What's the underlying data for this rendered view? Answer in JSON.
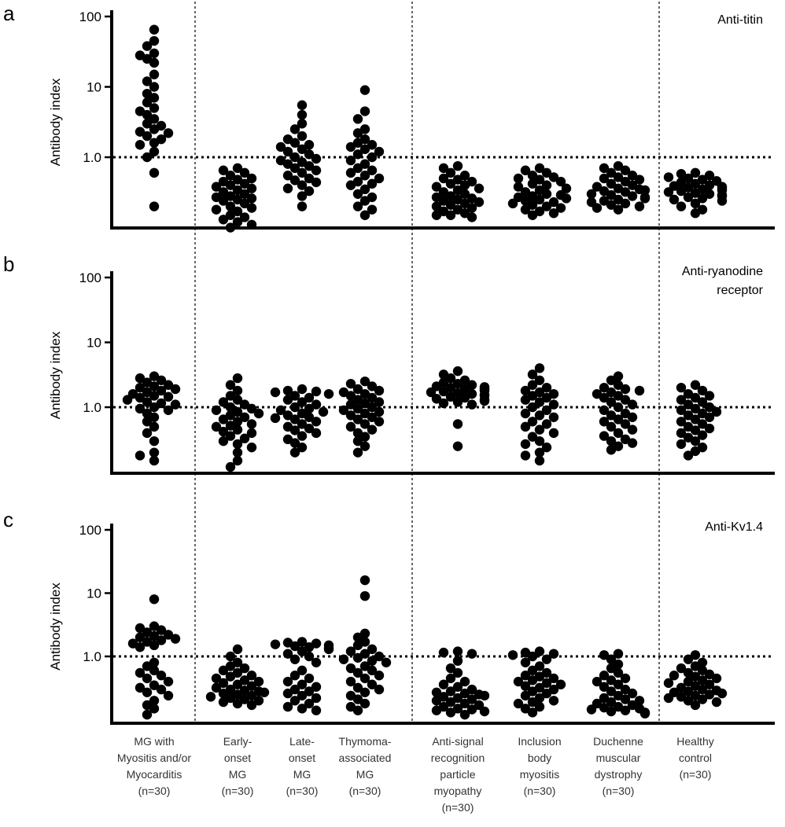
{
  "figure": {
    "group_labels": [
      [
        "MG with",
        "Myositis and/or",
        "Myocarditis",
        "(n=30)"
      ],
      [
        "Early-",
        "onset",
        "MG",
        "(n=30)"
      ],
      [
        "Late-",
        "onset",
        "MG",
        "(n=30)"
      ],
      [
        "Thymoma-",
        "associated",
        "MG",
        "(n=30)"
      ],
      [
        "Anti-signal",
        "recognition",
        "particle",
        "myopathy",
        "(n=30)"
      ],
      [
        "Inclusion",
        "body",
        "myositis",
        "(n=30)"
      ],
      [
        "Duchenne",
        "muscular",
        "dystrophy",
        "(n=30)"
      ],
      [
        "Healthy",
        "control",
        "(n=30)"
      ]
    ],
    "marker_color": "#000000"
  },
  "chart_data": [
    {
      "type": "scatter",
      "panel": "a",
      "title": [
        "Anti-titin"
      ],
      "ylabel": "Antibody index",
      "yscale": "log",
      "ylim": [
        0.1,
        100
      ],
      "yticks": [
        100,
        10,
        1.0
      ],
      "ytick_labels": [
        "100",
        "10",
        "1.0"
      ],
      "cutoff": 1.0,
      "categories": [
        "MG with Myositis and/or Myocarditis",
        "Early-onset MG",
        "Late-onset MG",
        "Thymoma-associated MG",
        "Anti-signal recognition particle myopathy",
        "Inclusion body myositis",
        "Duchenne muscular dystrophy",
        "Healthy control"
      ],
      "series": [
        {
          "name": "MG with Myositis and/or Myocarditis",
          "values": [
            65,
            45,
            38,
            30,
            28,
            25,
            22,
            15,
            12,
            10,
            8,
            7,
            6,
            5,
            4.5,
            4,
            3.5,
            3,
            2.8,
            2.5,
            2.3,
            2.2,
            2,
            1.8,
            1.6,
            1.5,
            1.2,
            1.0,
            0.6,
            0.2
          ]
        },
        {
          "name": "Early-onset MG",
          "values": [
            0.7,
            0.65,
            0.6,
            0.55,
            0.5,
            0.48,
            0.45,
            0.42,
            0.4,
            0.38,
            0.36,
            0.34,
            0.32,
            0.3,
            0.28,
            0.27,
            0.26,
            0.25,
            0.24,
            0.22,
            0.2,
            0.19,
            0.18,
            0.17,
            0.15,
            0.14,
            0.13,
            0.12,
            0.11,
            0.1
          ]
        },
        {
          "name": "Late-onset MG",
          "values": [
            5.5,
            4,
            3,
            2.5,
            2,
            1.8,
            1.6,
            1.5,
            1.4,
            1.3,
            1.2,
            1.1,
            1.0,
            0.95,
            0.9,
            0.85,
            0.8,
            0.75,
            0.7,
            0.65,
            0.6,
            0.55,
            0.5,
            0.47,
            0.44,
            0.4,
            0.36,
            0.33,
            0.28,
            0.2
          ]
        },
        {
          "name": "Thymoma-associated MG",
          "values": [
            9,
            4.5,
            3.5,
            2.5,
            2.2,
            1.8,
            1.6,
            1.5,
            1.4,
            1.3,
            1.2,
            1.1,
            1.0,
            0.9,
            0.8,
            0.7,
            0.65,
            0.6,
            0.55,
            0.5,
            0.45,
            0.42,
            0.4,
            0.35,
            0.3,
            0.27,
            0.24,
            0.2,
            0.18,
            0.15
          ]
        },
        {
          "name": "Anti-signal recognition particle myopathy",
          "values": [
            0.75,
            0.7,
            0.6,
            0.55,
            0.5,
            0.48,
            0.45,
            0.42,
            0.4,
            0.38,
            0.36,
            0.34,
            0.32,
            0.3,
            0.28,
            0.27,
            0.26,
            0.25,
            0.24,
            0.23,
            0.22,
            0.21,
            0.2,
            0.19,
            0.18,
            0.17,
            0.16,
            0.15,
            0.15,
            0.14
          ]
        },
        {
          "name": "Inclusion body myositis",
          "values": [
            0.7,
            0.65,
            0.6,
            0.55,
            0.52,
            0.5,
            0.48,
            0.45,
            0.42,
            0.4,
            0.38,
            0.36,
            0.34,
            0.32,
            0.3,
            0.29,
            0.28,
            0.27,
            0.26,
            0.25,
            0.24,
            0.23,
            0.22,
            0.21,
            0.2,
            0.19,
            0.18,
            0.17,
            0.16,
            0.15
          ]
        },
        {
          "name": "Duchenne muscular dystrophy",
          "values": [
            0.75,
            0.7,
            0.65,
            0.6,
            0.55,
            0.52,
            0.5,
            0.48,
            0.45,
            0.42,
            0.4,
            0.38,
            0.36,
            0.35,
            0.34,
            0.33,
            0.32,
            0.3,
            0.29,
            0.28,
            0.27,
            0.26,
            0.25,
            0.24,
            0.23,
            0.22,
            0.21,
            0.2,
            0.19,
            0.18
          ]
        },
        {
          "name": "Healthy control",
          "values": [
            0.6,
            0.58,
            0.55,
            0.52,
            0.5,
            0.48,
            0.46,
            0.44,
            0.42,
            0.4,
            0.39,
            0.38,
            0.37,
            0.36,
            0.35,
            0.34,
            0.33,
            0.32,
            0.31,
            0.3,
            0.29,
            0.28,
            0.27,
            0.26,
            0.25,
            0.24,
            0.22,
            0.2,
            0.18,
            0.16
          ]
        }
      ]
    },
    {
      "type": "scatter",
      "panel": "b",
      "title": [
        "Anti-ryanodine",
        "receptor"
      ],
      "ylabel": "Antibody index",
      "yscale": "log",
      "ylim": [
        0.1,
        100
      ],
      "yticks": [
        100,
        10,
        1.0
      ],
      "ytick_labels": [
        "100",
        "10",
        "1.0"
      ],
      "cutoff": 1.0,
      "categories": [
        "MG with Myositis and/or Myocarditis",
        "Early-onset MG",
        "Late-onset MG",
        "Thymoma-associated MG",
        "Anti-signal recognition particle myopathy",
        "Inclusion body myositis",
        "Duchenne muscular dystrophy",
        "Healthy control"
      ],
      "series": [
        {
          "name": "MG with Myositis and/or Myocarditis",
          "values": [
            3,
            2.8,
            2.6,
            2.4,
            2.2,
            2.1,
            2,
            1.9,
            1.8,
            1.7,
            1.6,
            1.5,
            1.45,
            1.4,
            1.3,
            1.2,
            1.15,
            1.1,
            1.0,
            0.95,
            0.9,
            0.8,
            0.7,
            0.6,
            0.5,
            0.4,
            0.3,
            0.2,
            0.18,
            0.15
          ]
        },
        {
          "name": "Early-onset MG",
          "values": [
            2.8,
            2.2,
            1.8,
            1.5,
            1.3,
            1.2,
            1.1,
            1.0,
            0.95,
            0.9,
            0.85,
            0.8,
            0.75,
            0.7,
            0.65,
            0.6,
            0.55,
            0.52,
            0.5,
            0.45,
            0.42,
            0.4,
            0.36,
            0.33,
            0.3,
            0.27,
            0.24,
            0.2,
            0.15,
            0.12
          ]
        },
        {
          "name": "Late-onset MG",
          "values": [
            1.9,
            1.8,
            1.75,
            1.7,
            1.6,
            1.5,
            1.4,
            1.3,
            1.2,
            1.1,
            1.0,
            0.95,
            0.9,
            0.85,
            0.8,
            0.75,
            0.7,
            0.68,
            0.65,
            0.6,
            0.55,
            0.5,
            0.47,
            0.44,
            0.4,
            0.36,
            0.32,
            0.28,
            0.24,
            0.2
          ]
        },
        {
          "name": "Thymoma-associated MG",
          "values": [
            2.5,
            2.3,
            2.1,
            1.9,
            1.8,
            1.7,
            1.6,
            1.5,
            1.4,
            1.3,
            1.2,
            1.15,
            1.1,
            1.0,
            0.95,
            0.9,
            0.85,
            0.8,
            0.75,
            0.7,
            0.65,
            0.6,
            0.55,
            0.5,
            0.45,
            0.4,
            0.35,
            0.3,
            0.25,
            0.2
          ]
        },
        {
          "name": "Anti-signal recognition particle myopathy",
          "values": [
            3.6,
            3.2,
            2.8,
            2.6,
            2.4,
            2.3,
            2.2,
            2.1,
            2.05,
            2.0,
            1.95,
            1.9,
            1.85,
            1.8,
            1.75,
            1.7,
            1.65,
            1.6,
            1.55,
            1.5,
            1.45,
            1.4,
            1.35,
            1.3,
            1.25,
            1.2,
            1.15,
            1.1,
            0.55,
            0.25
          ]
        },
        {
          "name": "Inclusion body myositis",
          "values": [
            4,
            3.2,
            2.6,
            2.2,
            2,
            1.8,
            1.7,
            1.6,
            1.5,
            1.4,
            1.3,
            1.2,
            1.1,
            1.0,
            0.9,
            0.8,
            0.75,
            0.7,
            0.6,
            0.55,
            0.5,
            0.45,
            0.4,
            0.35,
            0.3,
            0.27,
            0.24,
            0.2,
            0.18,
            0.15
          ]
        },
        {
          "name": "Duchenne muscular dystrophy",
          "values": [
            3,
            2.6,
            2.2,
            2,
            1.9,
            1.8,
            1.7,
            1.6,
            1.5,
            1.4,
            1.3,
            1.2,
            1.1,
            1.0,
            0.9,
            0.8,
            0.75,
            0.7,
            0.65,
            0.6,
            0.55,
            0.5,
            0.45,
            0.4,
            0.36,
            0.32,
            0.3,
            0.28,
            0.25,
            0.22
          ]
        },
        {
          "name": "Healthy control",
          "values": [
            2.2,
            2.0,
            1.8,
            1.6,
            1.5,
            1.4,
            1.3,
            1.2,
            1.1,
            1.0,
            0.95,
            0.9,
            0.85,
            0.8,
            0.75,
            0.7,
            0.65,
            0.6,
            0.55,
            0.5,
            0.47,
            0.44,
            0.4,
            0.37,
            0.34,
            0.3,
            0.27,
            0.24,
            0.21,
            0.18
          ]
        }
      ]
    },
    {
      "type": "scatter",
      "panel": "c",
      "title": [
        "Anti-Kv1.4"
      ],
      "ylabel": "Antibody index",
      "yscale": "log",
      "ylim": [
        0.1,
        100
      ],
      "yticks": [
        100,
        10,
        1.0
      ],
      "ytick_labels": [
        "100",
        "10",
        "1.0"
      ],
      "cutoff": 1.0,
      "categories": [
        "MG with Myositis and/or Myocarditis",
        "Early-onset MG",
        "Late-onset MG",
        "Thymoma-associated MG",
        "Anti-signal recognition particle myopathy",
        "Inclusion body myositis",
        "Duchenne muscular dystrophy",
        "Healthy control"
      ],
      "series": [
        {
          "name": "MG with Myositis and/or Myocarditis",
          "values": [
            8,
            3,
            2.8,
            2.6,
            2.4,
            2.2,
            2.1,
            2,
            1.9,
            1.8,
            1.7,
            1.6,
            1.5,
            1.4,
            0.8,
            0.7,
            0.6,
            0.55,
            0.5,
            0.45,
            0.4,
            0.35,
            0.32,
            0.3,
            0.27,
            0.24,
            0.2,
            0.17,
            0.15,
            0.12
          ]
        },
        {
          "name": "Early-onset MG",
          "values": [
            1.3,
            1.0,
            0.8,
            0.7,
            0.65,
            0.6,
            0.55,
            0.5,
            0.48,
            0.45,
            0.42,
            0.4,
            0.38,
            0.36,
            0.34,
            0.32,
            0.3,
            0.29,
            0.28,
            0.27,
            0.26,
            0.25,
            0.24,
            0.23,
            0.22,
            0.21,
            0.2,
            0.19,
            0.18,
            0.17
          ]
        },
        {
          "name": "Late-onset MG",
          "values": [
            1.7,
            1.65,
            1.6,
            1.55,
            1.5,
            1.45,
            1.4,
            1.35,
            1.3,
            1.2,
            1.1,
            1.0,
            0.9,
            0.8,
            0.6,
            0.5,
            0.45,
            0.4,
            0.36,
            0.33,
            0.3,
            0.28,
            0.26,
            0.24,
            0.22,
            0.2,
            0.18,
            0.16,
            0.15,
            0.14
          ]
        },
        {
          "name": "Thymoma-associated MG",
          "values": [
            16,
            9,
            2.3,
            2,
            1.7,
            1.5,
            1.3,
            1.2,
            1.1,
            1.0,
            0.95,
            0.9,
            0.85,
            0.8,
            0.7,
            0.65,
            0.6,
            0.55,
            0.5,
            0.45,
            0.4,
            0.36,
            0.32,
            0.3,
            0.27,
            0.24,
            0.21,
            0.18,
            0.16,
            0.14
          ]
        },
        {
          "name": "Anti-signal recognition particle myopathy",
          "values": [
            1.2,
            1.15,
            1.1,
            0.85,
            0.65,
            0.55,
            0.45,
            0.4,
            0.36,
            0.33,
            0.3,
            0.28,
            0.27,
            0.26,
            0.25,
            0.24,
            0.23,
            0.22,
            0.21,
            0.2,
            0.19,
            0.18,
            0.17,
            0.16,
            0.15,
            0.145,
            0.14,
            0.135,
            0.13,
            0.12
          ]
        },
        {
          "name": "Inclusion body myositis",
          "values": [
            1.2,
            1.15,
            1.1,
            1.05,
            1.0,
            0.9,
            0.8,
            0.7,
            0.6,
            0.55,
            0.5,
            0.48,
            0.45,
            0.42,
            0.4,
            0.38,
            0.36,
            0.34,
            0.32,
            0.3,
            0.28,
            0.26,
            0.24,
            0.22,
            0.2,
            0.19,
            0.18,
            0.16,
            0.15,
            0.13
          ]
        },
        {
          "name": "Duchenne muscular dystrophy",
          "values": [
            1.1,
            1.05,
            0.9,
            0.75,
            0.65,
            0.55,
            0.5,
            0.45,
            0.42,
            0.4,
            0.36,
            0.33,
            0.3,
            0.28,
            0.26,
            0.24,
            0.22,
            0.21,
            0.2,
            0.19,
            0.18,
            0.17,
            0.16,
            0.155,
            0.15,
            0.145,
            0.14,
            0.135,
            0.13,
            0.125
          ]
        },
        {
          "name": "Healthy control",
          "values": [
            1.05,
            0.9,
            0.8,
            0.7,
            0.65,
            0.6,
            0.55,
            0.52,
            0.5,
            0.48,
            0.45,
            0.42,
            0.4,
            0.38,
            0.36,
            0.34,
            0.32,
            0.3,
            0.29,
            0.28,
            0.27,
            0.26,
            0.25,
            0.24,
            0.23,
            0.22,
            0.21,
            0.2,
            0.19,
            0.17
          ]
        }
      ]
    }
  ],
  "panel_letters": [
    "a",
    "b",
    "c"
  ]
}
